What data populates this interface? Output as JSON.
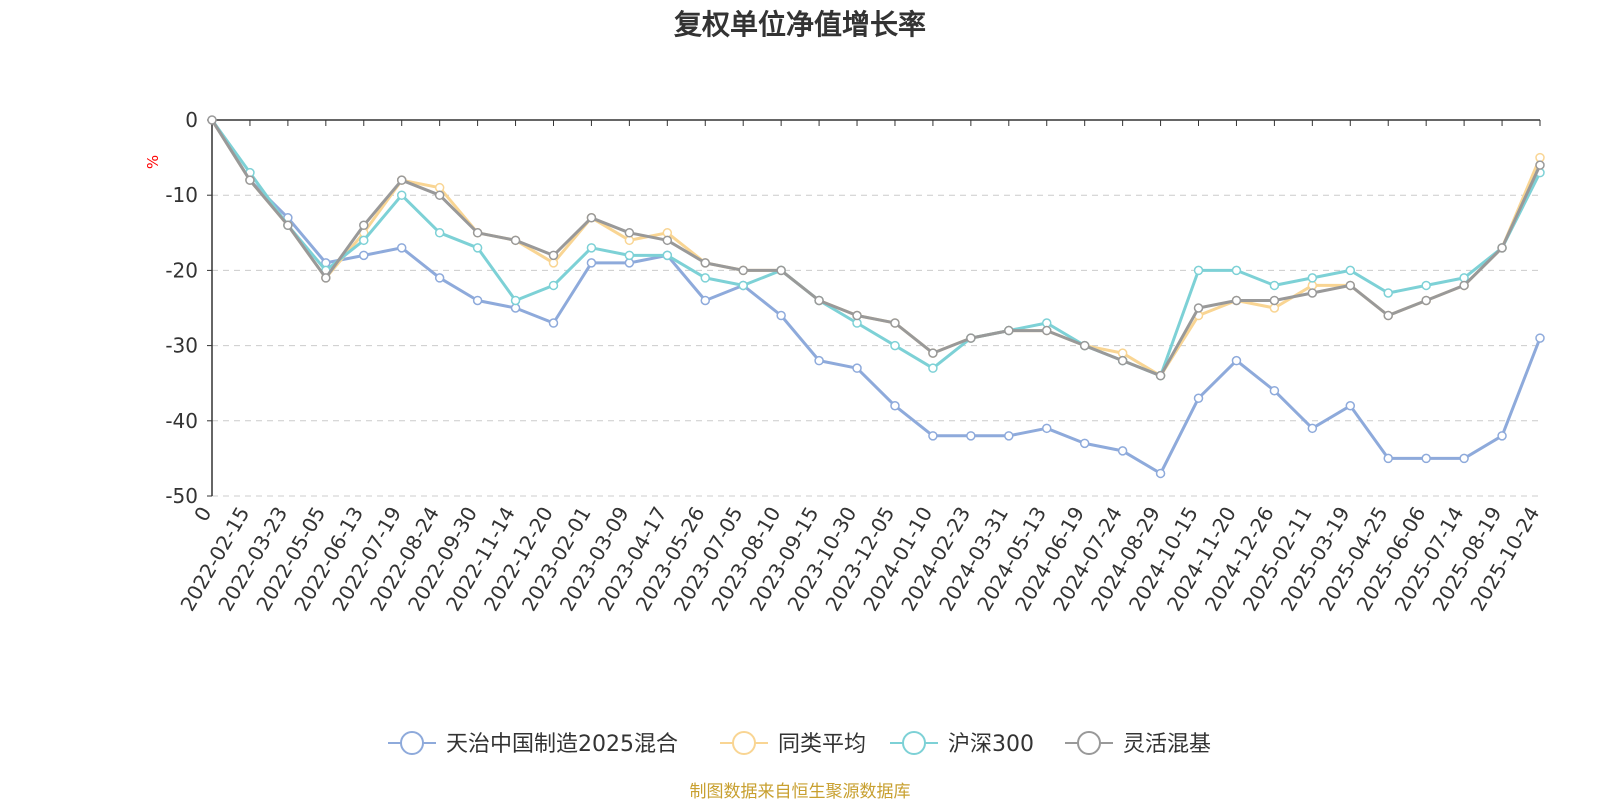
{
  "chart_data": {
    "type": "line",
    "title": "复权单位净值增长率",
    "ylabel": "%",
    "ylim": [
      -50,
      0
    ],
    "yticks": [
      0,
      -10,
      -20,
      -30,
      -40,
      -50
    ],
    "grid": "horizontal dashed",
    "x_origin_label": "0",
    "categories": [
      "2022-02-15",
      "2022-03-23",
      "2022-05-05",
      "2022-06-13",
      "2022-07-19",
      "2022-08-24",
      "2022-09-30",
      "2022-11-14",
      "2022-12-20",
      "2023-02-01",
      "2023-03-09",
      "2023-04-17",
      "2023-05-26",
      "2023-07-05",
      "2023-08-10",
      "2023-09-15",
      "2023-10-30",
      "2023-12-05",
      "2024-01-10",
      "2024-02-23",
      "2024-03-31",
      "2024-05-13",
      "2024-06-19",
      "2024-07-24",
      "2024-08-29",
      "2024-10-15",
      "2024-11-20",
      "2024-12-26",
      "2025-02-11",
      "2025-03-19",
      "2025-04-25",
      "2025-06-06",
      "2025-07-14",
      "2025-08-19",
      "2025-10-24"
    ],
    "series": [
      {
        "name": "天治中国制造2025混合",
        "color": "#8eaadb",
        "values": [
          -8,
          -13,
          -19,
          -18,
          -17,
          -21,
          -24,
          -25,
          -27,
          -19,
          -19,
          -18,
          -24,
          -22,
          -26,
          -32,
          -33,
          -38,
          -42,
          -42,
          -42,
          -41,
          -43,
          -44,
          -47,
          -37,
          -32,
          -36,
          -41,
          -38,
          -45,
          -45,
          -45,
          -42,
          -29
        ]
      },
      {
        "name": "同类平均",
        "color": "#f9d593",
        "values": [
          -8,
          -14,
          -21,
          -15,
          -8,
          -9,
          -15,
          -16,
          -19,
          -13,
          -16,
          -15,
          -19,
          -20,
          -20,
          -24,
          -26,
          -27,
          -31,
          -29,
          -28,
          -28,
          -30,
          -31,
          -34,
          -26,
          -24,
          -25,
          -22,
          -22,
          -26,
          -24,
          -22,
          -17,
          -5
        ]
      },
      {
        "name": "沪深300",
        "color": "#7dd1d6",
        "values": [
          -7,
          -14,
          -20,
          -16,
          -10,
          -15,
          -17,
          -24,
          -22,
          -17,
          -18,
          -18,
          -21,
          -22,
          -20,
          -24,
          -27,
          -30,
          -33,
          -29,
          -28,
          -27,
          -30,
          -32,
          -34,
          -20,
          -20,
          -22,
          -21,
          -20,
          -23,
          -22,
          -21,
          -17,
          -7
        ]
      },
      {
        "name": "灵活混基",
        "color": "#999999",
        "values": [
          -8,
          -14,
          -21,
          -14,
          -8,
          -10,
          -15,
          -16,
          -18,
          -13,
          -15,
          -16,
          -19,
          -20,
          -20,
          -24,
          -26,
          -27,
          -31,
          -29,
          -28,
          -28,
          -30,
          -32,
          -34,
          -25,
          -24,
          -24,
          -23,
          -22,
          -26,
          -24,
          -22,
          -17,
          -6
        ]
      }
    ]
  },
  "source": "制图数据来自恒生聚源数据库"
}
